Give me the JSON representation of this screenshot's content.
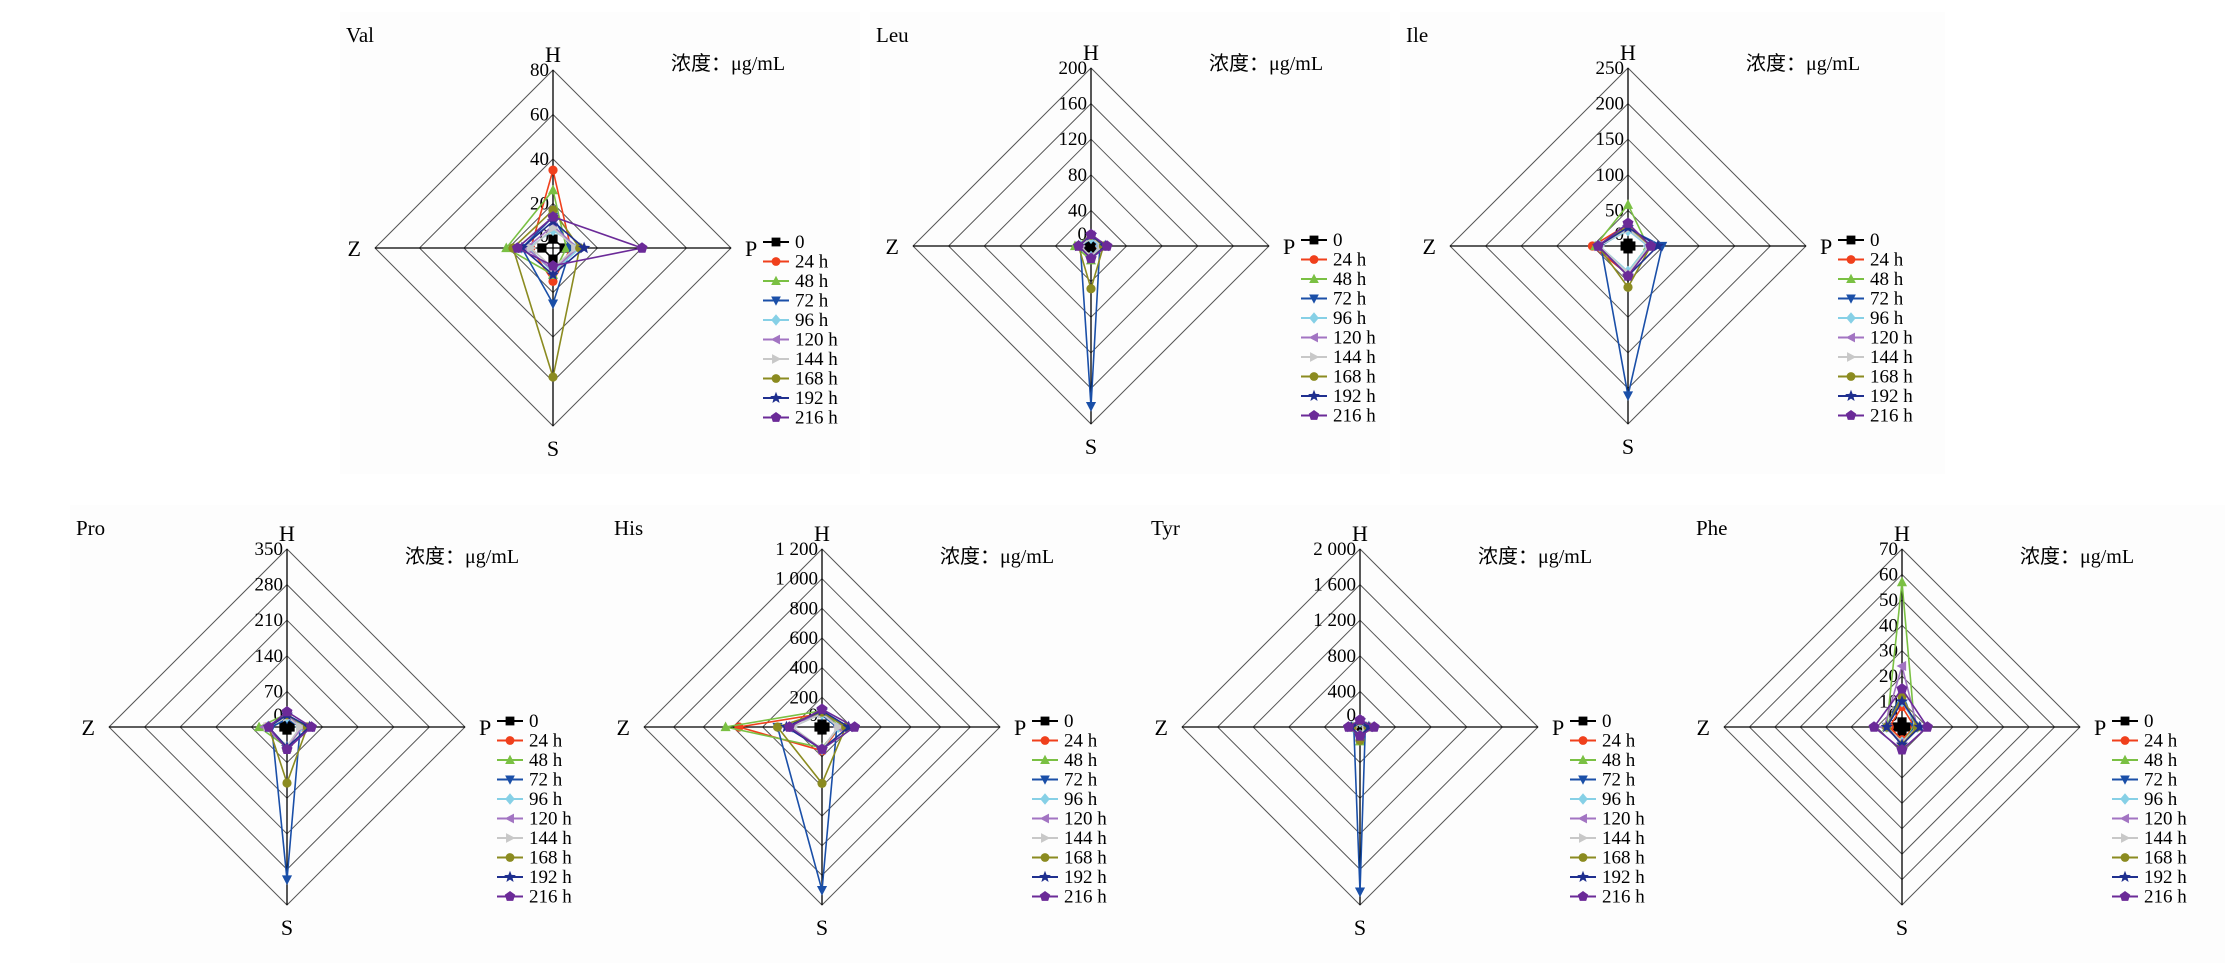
{
  "legend": {
    "entries": [
      "0",
      "24 h",
      "48 h",
      "72 h",
      "96 h",
      "120 h",
      "144 h",
      "168 h",
      "192 h",
      "216 h"
    ],
    "colors": [
      "#000000",
      "#f0401c",
      "#7ac043",
      "#1a4fa8",
      "#86d0e6",
      "#a274c2",
      "#c8c8c8",
      "#8b8b20",
      "#1f2f8f",
      "#6b2a98"
    ],
    "markers": [
      "square",
      "circle",
      "triangle-up",
      "triangle-down",
      "diamond",
      "triangle-left",
      "triangle-right",
      "circle",
      "star",
      "pentagon"
    ]
  },
  "unit_label": "浓度：μg/mL",
  "axes": [
    "H",
    "P",
    "S",
    "Z"
  ],
  "chart_data": [
    {
      "type": "radar",
      "title": "Val",
      "max": 80,
      "ticks": [
        "80",
        "60",
        "40",
        "20",
        "0"
      ],
      "tick_values": [
        80,
        60,
        40,
        20,
        0
      ],
      "axes": [
        "H",
        "P",
        "S",
        "Z"
      ],
      "series": [
        {
          "name": "0",
          "values": [
            4,
            5,
            5,
            5
          ]
        },
        {
          "name": "24 h",
          "values": [
            35,
            8,
            15,
            10
          ]
        },
        {
          "name": "48 h",
          "values": [
            26,
            6,
            12,
            21
          ]
        },
        {
          "name": "72 h",
          "values": [
            14,
            8,
            25,
            14
          ]
        },
        {
          "name": "96 h",
          "values": [
            8,
            12,
            11,
            11
          ]
        },
        {
          "name": "120 h",
          "values": [
            10,
            11,
            10,
            12
          ]
        },
        {
          "name": "144 h",
          "values": [
            9,
            10,
            9,
            10
          ]
        },
        {
          "name": "168 h",
          "values": [
            17,
            12,
            58,
            18
          ]
        },
        {
          "name": "192 h",
          "values": [
            12,
            14,
            12,
            14
          ]
        },
        {
          "name": "216 h",
          "values": [
            14,
            40,
            8,
            16
          ]
        }
      ]
    },
    {
      "type": "radar",
      "title": "Leu",
      "max": 200,
      "ticks": [
        "200",
        "160",
        "120",
        "80",
        "40",
        "0"
      ],
      "tick_values": [
        200,
        160,
        120,
        80,
        40,
        0
      ],
      "axes": [
        "H",
        "P",
        "S",
        "Z"
      ],
      "series": [
        {
          "name": "0",
          "values": [
            3,
            3,
            3,
            3
          ]
        },
        {
          "name": "24 h",
          "values": [
            10,
            10,
            12,
            14
          ]
        },
        {
          "name": "48 h",
          "values": [
            12,
            12,
            16,
            18
          ]
        },
        {
          "name": "72 h",
          "values": [
            8,
            10,
            180,
            12
          ]
        },
        {
          "name": "96 h",
          "values": [
            9,
            10,
            12,
            12
          ]
        },
        {
          "name": "120 h",
          "values": [
            12,
            12,
            12,
            12
          ]
        },
        {
          "name": "144 h",
          "values": [
            10,
            12,
            12,
            12
          ]
        },
        {
          "name": "168 h",
          "values": [
            12,
            14,
            48,
            14
          ]
        },
        {
          "name": "192 h",
          "values": [
            12,
            16,
            14,
            14
          ]
        },
        {
          "name": "216 h",
          "values": [
            13,
            18,
            14,
            14
          ]
        }
      ]
    },
    {
      "type": "radar",
      "title": "Ile",
      "max": 250,
      "ticks": [
        "250",
        "200",
        "150",
        "100",
        "50",
        "0"
      ],
      "tick_values": [
        250,
        200,
        150,
        100,
        50,
        0
      ],
      "axes": [
        "H",
        "P",
        "S",
        "Z"
      ],
      "series": [
        {
          "name": "0",
          "values": [
            4,
            4,
            4,
            4
          ]
        },
        {
          "name": "24 h",
          "values": [
            30,
            32,
            40,
            50
          ]
        },
        {
          "name": "48 h",
          "values": [
            58,
            28,
            36,
            46
          ]
        },
        {
          "name": "72 h",
          "values": [
            24,
            48,
            210,
            38
          ]
        },
        {
          "name": "96 h",
          "values": [
            22,
            28,
            36,
            40
          ]
        },
        {
          "name": "120 h",
          "values": [
            26,
            30,
            40,
            42
          ]
        },
        {
          "name": "144 h",
          "values": [
            24,
            30,
            38,
            40
          ]
        },
        {
          "name": "168 h",
          "values": [
            28,
            32,
            58,
            42
          ]
        },
        {
          "name": "192 h",
          "values": [
            26,
            42,
            42,
            42
          ]
        },
        {
          "name": "216 h",
          "values": [
            32,
            32,
            42,
            42
          ]
        }
      ]
    },
    {
      "type": "radar",
      "title": "Pro",
      "max": 350,
      "ticks": [
        "350",
        "280",
        "210",
        "140",
        "70",
        "0"
      ],
      "tick_values": [
        350,
        280,
        210,
        140,
        70,
        0
      ],
      "axes": [
        "H",
        "P",
        "S",
        "Z"
      ],
      "series": [
        {
          "name": "0",
          "values": [
            6,
            6,
            6,
            6
          ]
        },
        {
          "name": "24 h",
          "values": [
            20,
            30,
            40,
            40
          ]
        },
        {
          "name": "48 h",
          "values": [
            26,
            30,
            40,
            55
          ]
        },
        {
          "name": "72 h",
          "values": [
            16,
            26,
            300,
            30
          ]
        },
        {
          "name": "96 h",
          "values": [
            20,
            26,
            40,
            38
          ]
        },
        {
          "name": "120 h",
          "values": [
            22,
            30,
            40,
            44
          ]
        },
        {
          "name": "144 h",
          "values": [
            20,
            26,
            38,
            38
          ]
        },
        {
          "name": "168 h",
          "values": [
            24,
            40,
            110,
            36
          ]
        },
        {
          "name": "192 h",
          "values": [
            24,
            44,
            40,
            36
          ]
        },
        {
          "name": "216 h",
          "values": [
            30,
            48,
            44,
            36
          ]
        }
      ]
    },
    {
      "type": "radar",
      "title": "His",
      "max": 1200,
      "ticks": [
        "1 200",
        "1 000",
        "800",
        "600",
        "400",
        "200",
        "0"
      ],
      "tick_values": [
        1200,
        1000,
        800,
        600,
        400,
        200,
        0
      ],
      "axes": [
        "H",
        "P",
        "S",
        "Z"
      ],
      "series": [
        {
          "name": "0",
          "values": [
            20,
            20,
            20,
            20
          ]
        },
        {
          "name": "24 h",
          "values": [
            90,
            120,
            160,
            560
          ]
        },
        {
          "name": "48 h",
          "values": [
            110,
            120,
            140,
            650
          ]
        },
        {
          "name": "72 h",
          "values": [
            80,
            100,
            1100,
            300
          ]
        },
        {
          "name": "96 h",
          "values": [
            90,
            110,
            150,
            200
          ]
        },
        {
          "name": "120 h",
          "values": [
            100,
            110,
            150,
            240
          ]
        },
        {
          "name": "144 h",
          "values": [
            90,
            110,
            150,
            200
          ]
        },
        {
          "name": "168 h",
          "values": [
            100,
            160,
            380,
            300
          ]
        },
        {
          "name": "192 h",
          "values": [
            110,
            180,
            150,
            240
          ]
        },
        {
          "name": "216 h",
          "values": [
            120,
            220,
            150,
            220
          ]
        }
      ]
    },
    {
      "type": "radar",
      "title": "Tyr",
      "max": 2000,
      "ticks": [
        "2 000",
        "1 600",
        "1 200",
        "800",
        "400",
        "0"
      ],
      "tick_values": [
        2000,
        1600,
        1200,
        800,
        400,
        0
      ],
      "axes": [
        "H",
        "P",
        "S",
        "Z"
      ],
      "series": [
        {
          "name": "0",
          "values": [
            10,
            10,
            10,
            10
          ]
        },
        {
          "name": "24 h",
          "values": [
            60,
            70,
            90,
            80
          ]
        },
        {
          "name": "48 h",
          "values": [
            70,
            70,
            160,
            90
          ]
        },
        {
          "name": "72 h",
          "values": [
            50,
            60,
            1850,
            70
          ]
        },
        {
          "name": "96 h",
          "values": [
            60,
            70,
            90,
            80
          ]
        },
        {
          "name": "120 h",
          "values": [
            70,
            80,
            90,
            100
          ]
        },
        {
          "name": "144 h",
          "values": [
            60,
            70,
            90,
            80
          ]
        },
        {
          "name": "168 h",
          "values": [
            70,
            90,
            150,
            90
          ]
        },
        {
          "name": "192 h",
          "values": [
            70,
            100,
            100,
            100
          ]
        },
        {
          "name": "216 h",
          "values": [
            80,
            160,
            100,
            130
          ]
        }
      ]
    },
    {
      "type": "radar",
      "title": "Phe",
      "max": 70,
      "ticks": [
        "70",
        "60",
        "50",
        "40",
        "30",
        "20",
        "10",
        "0"
      ],
      "tick_values": [
        70,
        60,
        50,
        40,
        30,
        20,
        10,
        0
      ],
      "axes": [
        "H",
        "P",
        "S",
        "Z"
      ],
      "series": [
        {
          "name": "0",
          "values": [
            2,
            2,
            2,
            2
          ]
        },
        {
          "name": "24 h",
          "values": [
            8,
            5,
            5,
            5
          ]
        },
        {
          "name": "48 h",
          "values": [
            57,
            5,
            6,
            6
          ]
        },
        {
          "name": "72 h",
          "values": [
            14,
            5,
            7,
            6
          ]
        },
        {
          "name": "96 h",
          "values": [
            10,
            6,
            6,
            6
          ]
        },
        {
          "name": "120 h",
          "values": [
            24,
            6,
            6,
            7
          ]
        },
        {
          "name": "144 h",
          "values": [
            12,
            6,
            6,
            6
          ]
        },
        {
          "name": "168 h",
          "values": [
            12,
            6,
            7,
            6
          ]
        },
        {
          "name": "192 h",
          "values": [
            10,
            7,
            7,
            6
          ]
        },
        {
          "name": "216 h",
          "values": [
            15,
            10,
            9,
            11
          ]
        }
      ]
    }
  ]
}
